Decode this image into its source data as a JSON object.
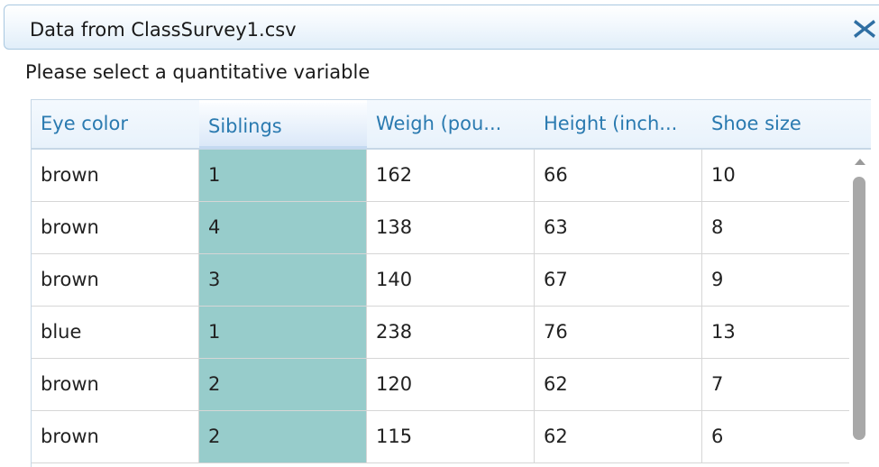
{
  "dialog": {
    "title": "Data from ClassSurvey1.csv",
    "close_icon": "close-x-icon",
    "prompt": "Please select a quantitative variable"
  },
  "table": {
    "columns": [
      "Eye color",
      "Siblings",
      "Weigh (pou...",
      "Height (inch...",
      "Shoe size"
    ],
    "selected_column": "Siblings",
    "rows": [
      [
        "brown",
        "1",
        "162",
        "66",
        "10"
      ],
      [
        "brown",
        "4",
        "138",
        "63",
        "8"
      ],
      [
        "brown",
        "3",
        "140",
        "67",
        "9"
      ],
      [
        "blue",
        "1",
        "238",
        "76",
        "13"
      ],
      [
        "brown",
        "2",
        "120",
        "62",
        "7"
      ],
      [
        "brown",
        "2",
        "115",
        "62",
        "6"
      ]
    ]
  },
  "colors": {
    "header_text": "#2a7ab0",
    "selected_column_fill": "#97cccb"
  }
}
